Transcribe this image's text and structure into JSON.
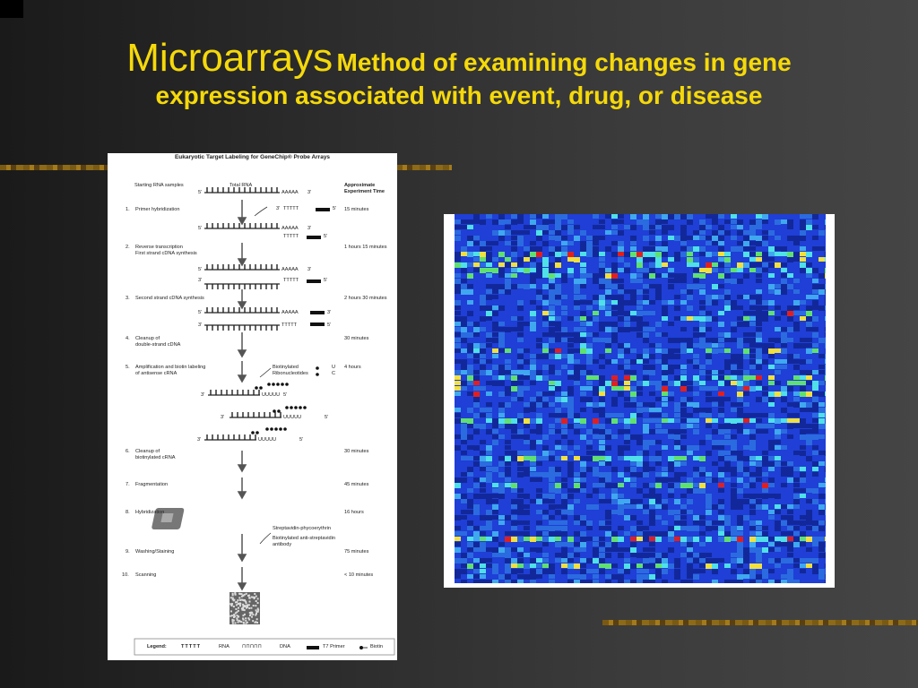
{
  "slide": {
    "title_main": "Microarrays",
    "title_sub_line1": "Method of examining changes in gene",
    "title_sub_line2": "expression associated with event, drug, or disease",
    "colors": {
      "title": "#f5d90a",
      "background_dark": "#1a1a1a",
      "background_light": "#454545",
      "rule_gold": "#a37a1c"
    }
  },
  "protocol": {
    "title": "Eukaryotic Target Labeling for GeneChip® Probe Arrays",
    "col_samples": "Starting RNA samples",
    "col_total_rna": "Total RNA",
    "col_time": "Approximate\nExperiment Time",
    "steps": [
      {
        "num": "1.",
        "label": "Primer hybridization",
        "time": "15 minutes"
      },
      {
        "num": "2.",
        "label": "Reverse transcription\nFirst strand cDNA synthesis",
        "time": "1 hours 15 minutes"
      },
      {
        "num": "3.",
        "label": "Second strand cDNA synthesis",
        "time": "2 hours 30 minutes"
      },
      {
        "num": "4.",
        "label": "Cleanup of\ndouble-strand cDNA",
        "time": "30 minutes"
      },
      {
        "num": "5.",
        "label": "Amplification and biotin labeling\nof antisense cRNA",
        "time": "4 hours"
      },
      {
        "num": "6.",
        "label": "Cleanup of\nbiotinylated cRNA",
        "time": "30 minutes"
      },
      {
        "num": "7.",
        "label": "Fragmentation",
        "time": "45 minutes"
      },
      {
        "num": "8.",
        "label": "Hybridization",
        "time": "16 hours"
      },
      {
        "num": "9.",
        "label": "Washing/Staining",
        "time": "75 minutes"
      },
      {
        "num": "10.",
        "label": "Scanning",
        "time": "< 10 minutes"
      }
    ],
    "annotations": {
      "biotinylated_ribonucleotides": "Biotinylated\nRibonucleotides",
      "nt_u": "U",
      "nt_c": "C",
      "streptavidin": "Streptavidin-phycoerythrin",
      "antibody": "Biotinylated anti-streptavidin\nantibody",
      "polyA": "AAAAA",
      "polyT": "TTTTT",
      "polyU": "UUUUU",
      "five_prime": "5'",
      "three_prime": "3'"
    },
    "legend": {
      "label": "Legend:",
      "rna_glyph": "TTTTT",
      "rna": "RNA",
      "dna_glyph": "⊓⊓⊓⊓⊓",
      "dna": "DNA",
      "primer": "T7 Primer",
      "biotin": "Biotin"
    }
  },
  "heatmap": {
    "colors": {
      "base": "#1f3fd6",
      "dark": "#12289a",
      "mid": "#2b6be0",
      "light": "#3fa8ef",
      "cyan": "#4fe0e8",
      "green": "#60e070",
      "yellow": "#f0e040",
      "red": "#e02020"
    }
  }
}
